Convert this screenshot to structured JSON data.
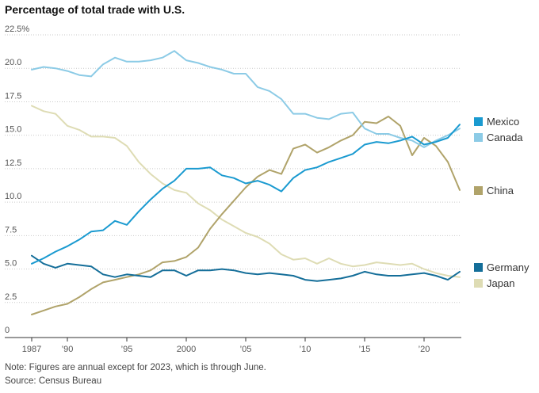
{
  "title": "Percentage of total trade with U.S.",
  "note": "Note: Figures are annual except for 2023, which is through June.",
  "source": "Source: Census Bureau",
  "chart_data": {
    "type": "line",
    "title": "Percentage of total trade with U.S.",
    "xlabel": "",
    "ylabel": "",
    "xlim": [
      1987,
      2023
    ],
    "ylim": [
      0,
      22.5
    ],
    "y_unit_suffix": "%",
    "grid": "horizontal dotted",
    "legend": "right, labels next to line ends",
    "x_ticks": [
      {
        "value": 1987,
        "label": "1987"
      },
      {
        "value": 1990,
        "label": "’90"
      },
      {
        "value": 1995,
        "label": "’95"
      },
      {
        "value": 2000,
        "label": "2000"
      },
      {
        "value": 2005,
        "label": "’05"
      },
      {
        "value": 2010,
        "label": "’10"
      },
      {
        "value": 2015,
        "label": "’15"
      },
      {
        "value": 2020,
        "label": "’20"
      }
    ],
    "y_ticks": [
      {
        "value": 22.5,
        "label": "22.5%"
      },
      {
        "value": 20,
        "label": "20.0"
      },
      {
        "value": 17.5,
        "label": "17.5"
      },
      {
        "value": 15,
        "label": "15.0"
      },
      {
        "value": 12.5,
        "label": "12.5"
      },
      {
        "value": 10,
        "label": "10.0"
      },
      {
        "value": 7.5,
        "label": "7.5"
      },
      {
        "value": 5,
        "label": "5.0"
      },
      {
        "value": 2.5,
        "label": "2.5"
      },
      {
        "value": 0,
        "label": "0"
      }
    ],
    "x": [
      1987,
      1988,
      1989,
      1990,
      1991,
      1992,
      1993,
      1994,
      1995,
      1996,
      1997,
      1998,
      1999,
      2000,
      2001,
      2002,
      2003,
      2004,
      2005,
      2006,
      2007,
      2008,
      2009,
      2010,
      2011,
      2012,
      2013,
      2014,
      2015,
      2016,
      2017,
      2018,
      2019,
      2020,
      2021,
      2022,
      2023
    ],
    "series": [
      {
        "name": "Mexico",
        "color": "#1a9ad0",
        "values": [
          5.4,
          5.8,
          6.3,
          6.7,
          7.2,
          7.8,
          7.9,
          8.6,
          8.3,
          9.3,
          10.2,
          11.0,
          11.6,
          12.5,
          12.5,
          12.6,
          12.0,
          11.8,
          11.4,
          11.6,
          11.3,
          10.8,
          11.8,
          12.4,
          12.6,
          13.0,
          13.3,
          13.6,
          14.3,
          14.5,
          14.4,
          14.6,
          14.9,
          14.3,
          14.5,
          14.8,
          15.8
        ]
      },
      {
        "name": "Canada",
        "color": "#8ccbe6",
        "values": [
          19.9,
          20.1,
          20.0,
          19.8,
          19.5,
          19.4,
          20.3,
          20.8,
          20.5,
          20.5,
          20.6,
          20.8,
          21.3,
          20.6,
          20.4,
          20.1,
          19.9,
          19.6,
          19.6,
          18.6,
          18.3,
          17.7,
          16.6,
          16.6,
          16.3,
          16.2,
          16.6,
          16.7,
          15.5,
          15.1,
          15.1,
          14.8,
          14.6,
          14.1,
          14.6,
          15.0,
          15.5
        ]
      },
      {
        "name": "China",
        "color": "#b0a36a",
        "values": [
          1.6,
          1.9,
          2.2,
          2.4,
          2.9,
          3.5,
          4.0,
          4.2,
          4.4,
          4.6,
          4.9,
          5.5,
          5.6,
          5.9,
          6.6,
          8.0,
          9.1,
          10.1,
          11.1,
          11.9,
          12.4,
          12.1,
          14.0,
          14.3,
          13.7,
          14.1,
          14.6,
          15.0,
          16.0,
          15.9,
          16.4,
          15.7,
          13.5,
          14.8,
          14.2,
          13.0,
          10.9
        ]
      },
      {
        "name": "Germany",
        "color": "#146e99",
        "values": [
          6.0,
          5.4,
          5.1,
          5.4,
          5.3,
          5.2,
          4.6,
          4.4,
          4.6,
          4.5,
          4.4,
          4.9,
          4.9,
          4.5,
          4.9,
          4.9,
          5.0,
          4.9,
          4.7,
          4.6,
          4.7,
          4.6,
          4.5,
          4.2,
          4.1,
          4.2,
          4.3,
          4.5,
          4.8,
          4.6,
          4.5,
          4.5,
          4.6,
          4.7,
          4.5,
          4.2,
          4.8
        ]
      },
      {
        "name": "Japan",
        "color": "#dedcb4",
        "values": [
          17.2,
          16.8,
          16.6,
          15.7,
          15.4,
          14.9,
          14.9,
          14.8,
          14.2,
          13.0,
          12.1,
          11.4,
          10.9,
          10.7,
          9.9,
          9.4,
          8.7,
          8.2,
          7.7,
          7.4,
          6.9,
          6.1,
          5.7,
          5.8,
          5.4,
          5.8,
          5.4,
          5.2,
          5.3,
          5.5,
          5.4,
          5.3,
          5.4,
          5.0,
          4.7,
          4.5,
          4.4
        ]
      }
    ]
  }
}
